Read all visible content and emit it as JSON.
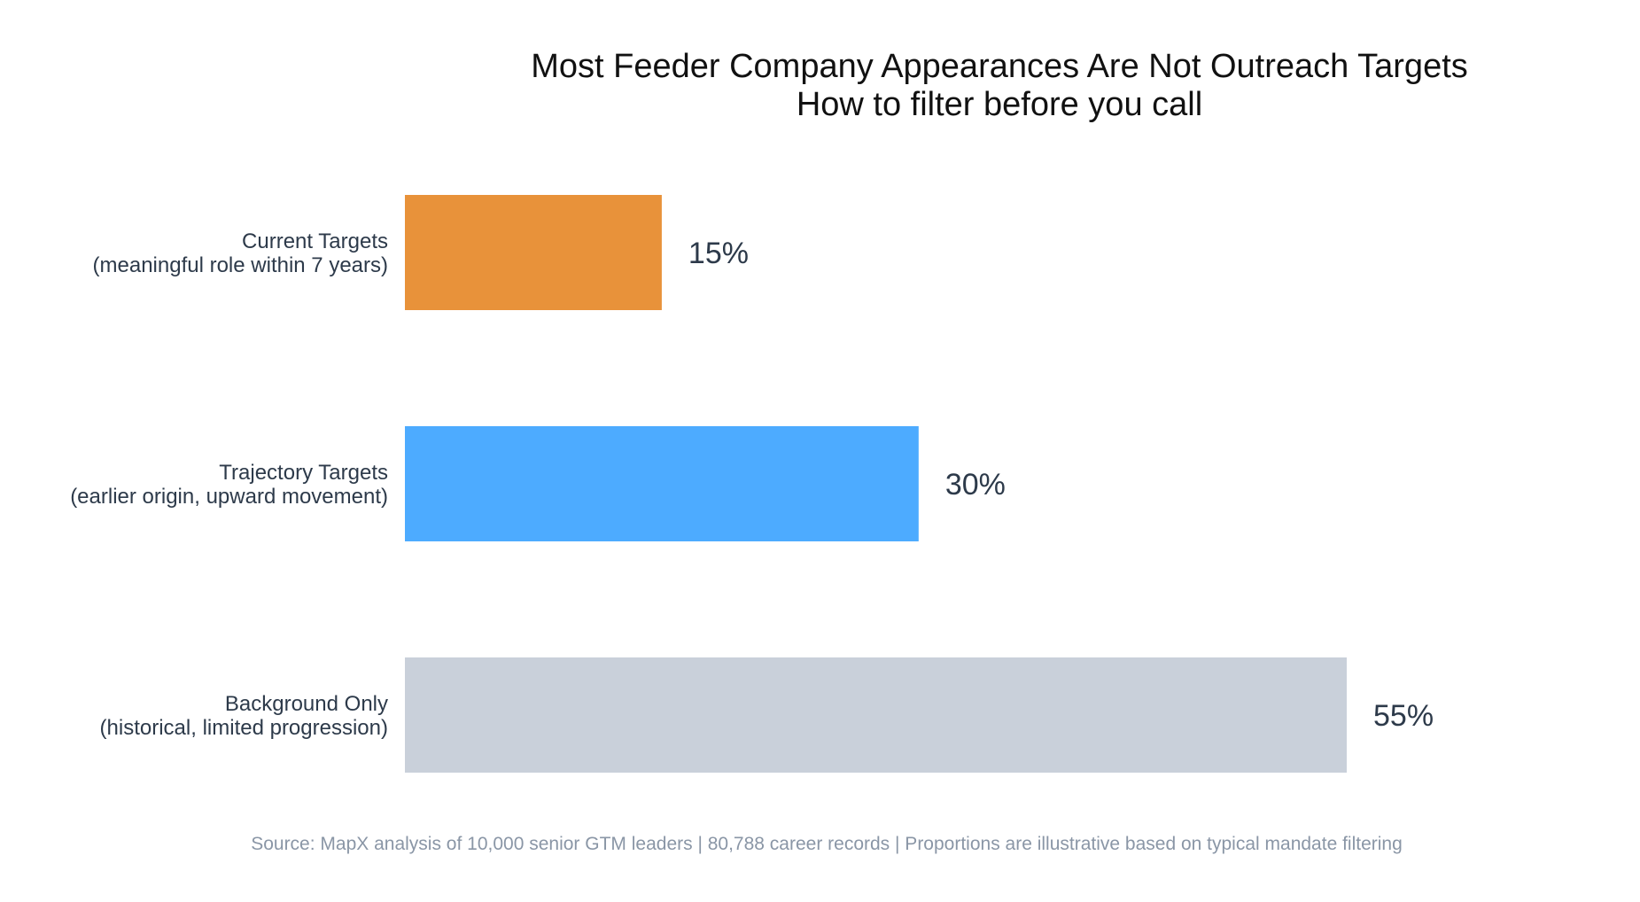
{
  "chart_data": {
    "type": "bar",
    "orientation": "horizontal",
    "title": "Most Feeder Company Appearances Are Not Outreach Targets",
    "subtitle": "How to filter before you call",
    "categories": [
      {
        "name": "Current Targets",
        "description": "(meaningful role within 7 years)",
        "value": 15,
        "label": "15%",
        "color": "#e8923a"
      },
      {
        "name": "Trajectory Targets",
        "description": "(earlier origin, upward movement)",
        "value": 30,
        "label": "30%",
        "color": "#4dabff"
      },
      {
        "name": "Background Only",
        "description": "(historical, limited progression)",
        "value": 55,
        "label": "55%",
        "color": "#c9d0da"
      }
    ],
    "xlim": [
      0,
      55
    ],
    "xlabel": "",
    "ylabel": "",
    "grid": false,
    "legend": "none",
    "source": "Source: MapX analysis of 10,000 senior GTM leaders | 80,788 career records | Proportions are illustrative based on typical mandate filtering"
  }
}
